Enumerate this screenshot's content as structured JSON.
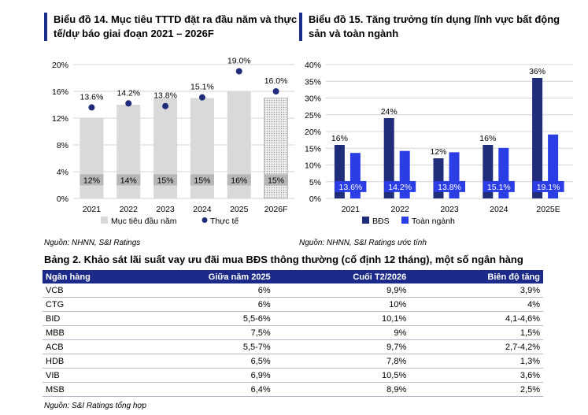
{
  "left_chart": {
    "title": "Biểu đồ 14. Mục tiêu TTTD đặt ra đầu năm và thực tế/dự báo giai đoạn 2021 – 2026F",
    "source": "Nguồn: NHNN, S&I Ratings"
  },
  "right_chart": {
    "title": "Biểu đồ 15. Tăng trưởng tín dụng lĩnh vực bất động sản và toàn ngành",
    "source": "Nguồn: NHNN, S&I Ratings ước tính"
  },
  "table": {
    "title": "Bảng 2. Khảo sát lãi suất vay ưu đãi mua BĐS thông thường (cố định 12 tháng), một số ngân hàng",
    "headers": [
      "Ngân hàng",
      "Giữa năm 2025",
      "Cuối T2/2026",
      "Biên độ tăng"
    ],
    "rows": [
      [
        "VCB",
        "6%",
        "9,9%",
        "3,9%"
      ],
      [
        "CTG",
        "6%",
        "10%",
        "4%"
      ],
      [
        "BID",
        "5,5-6%",
        "10,1%",
        "4,1-4,6%"
      ],
      [
        "MBB",
        "7,5%",
        "9%",
        "1,5%"
      ],
      [
        "ACB",
        "5,5-7%",
        "9,7%",
        "2,7-4,2%"
      ],
      [
        "HDB",
        "6,5%",
        "7,8%",
        "1,3%"
      ],
      [
        "VIB",
        "6,9%",
        "10,5%",
        "3,6%"
      ],
      [
        "MSB",
        "6,4%",
        "8,9%",
        "2,5%"
      ]
    ],
    "source": "Nguồn: S&I Ratings tổng hợp"
  },
  "chart_data": [
    {
      "type": "bar",
      "title": "Biểu đồ 14. Mục tiêu TTTD đặt ra đầu năm và thực tế/dự báo giai đoạn 2021 – 2026F",
      "categories": [
        "2021",
        "2022",
        "2023",
        "2024",
        "2025",
        "2026F"
      ],
      "ylim": [
        0,
        20
      ],
      "yticks": [
        0,
        4,
        8,
        12,
        16,
        20
      ],
      "ytick_labels": [
        "0%",
        "4%",
        "8%",
        "12%",
        "16%",
        "20%"
      ],
      "grid": true,
      "legend": "bottom",
      "series": [
        {
          "name": "Mục tiêu đầu năm",
          "values": [
            12,
            14,
            15,
            15,
            16,
            15
          ],
          "labels": [
            "12%",
            "14%",
            "15%",
            "15%",
            "16%",
            "15%"
          ],
          "color": "#d9d9d9"
        },
        {
          "name": "Thực tế",
          "values": [
            13.6,
            14.2,
            13.8,
            15.1,
            19.0,
            16.0
          ],
          "labels": [
            "13.6%",
            "14.2%",
            "13.8%",
            "15.1%",
            "19.0%",
            "16.0%"
          ],
          "color": "#1f2d7a"
        }
      ]
    },
    {
      "type": "bar",
      "title": "Biểu đồ 15. Tăng trưởng tín dụng lĩnh vực bất động sản và toàn ngành",
      "categories": [
        "2021",
        "2022",
        "2023",
        "2024",
        "2025E"
      ],
      "ylim": [
        0,
        40
      ],
      "yticks": [
        0,
        5,
        10,
        15,
        20,
        25,
        30,
        35,
        40
      ],
      "ytick_labels": [
        "0%",
        "5%",
        "10%",
        "15%",
        "20%",
        "25%",
        "30%",
        "35%",
        "40%"
      ],
      "grid": true,
      "legend": "bottom",
      "series": [
        {
          "name": "BĐS",
          "values": [
            16,
            24,
            12,
            16,
            36
          ],
          "labels": [
            "16%",
            "24%",
            "12%",
            "16%",
            "36%"
          ],
          "color": "#1f2d7a"
        },
        {
          "name": "Toàn ngành",
          "values": [
            13.6,
            14.2,
            13.8,
            15.1,
            19.1
          ],
          "labels": [
            "13.6%",
            "14.2%",
            "13.8%",
            "15.1%",
            "19.1%"
          ],
          "color": "#2b3ee6"
        }
      ]
    }
  ]
}
